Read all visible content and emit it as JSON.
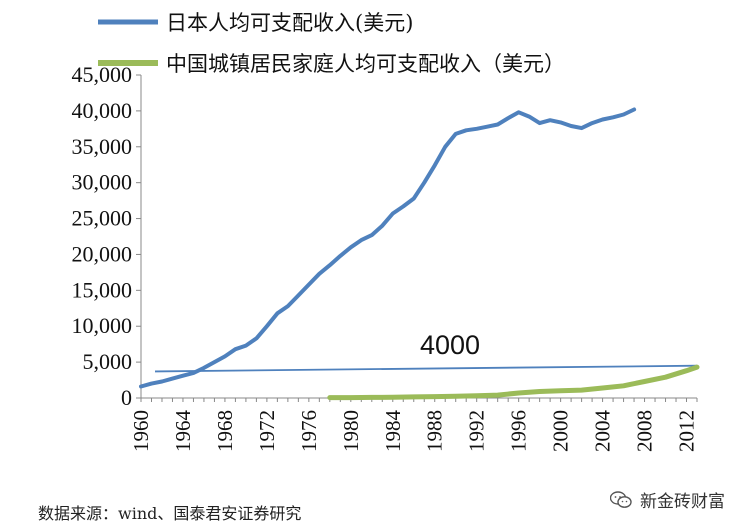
{
  "chart_data": {
    "type": "line",
    "xlim": [
      1960,
      2013
    ],
    "ylim": [
      0,
      45000
    ],
    "y_ticks": [
      0,
      5000,
      10000,
      15000,
      20000,
      25000,
      30000,
      35000,
      40000,
      45000
    ],
    "y_tick_labels": [
      "0",
      "5,000",
      "10,000",
      "15,000",
      "20,000",
      "25,000",
      "30,000",
      "35,000",
      "40,000",
      "45,000"
    ],
    "x_ticks": [
      1960,
      1964,
      1968,
      1972,
      1976,
      1980,
      1984,
      1988,
      1992,
      1996,
      2000,
      2004,
      2008,
      2012
    ],
    "x_tick_labels": [
      "1960",
      "1964",
      "1968",
      "1972",
      "1976",
      "1980",
      "1984",
      "1988",
      "1992",
      "1996",
      "2000",
      "2004",
      "2008",
      "2012"
    ],
    "grid": false,
    "legend_position": "top-left",
    "series": [
      {
        "name": "日本人均可支配收入(美元)",
        "color": "#4F81BD",
        "x": [
          1960,
          1961,
          1962,
          1963,
          1964,
          1965,
          1966,
          1967,
          1968,
          1969,
          1970,
          1971,
          1972,
          1973,
          1974,
          1975,
          1976,
          1977,
          1978,
          1979,
          1980,
          1981,
          1982,
          1983,
          1984,
          1985,
          1986,
          1987,
          1988,
          1989,
          1990,
          1991,
          1992,
          1993,
          1994,
          1995,
          1996,
          1997,
          1998,
          1999,
          2000,
          2001,
          2002,
          2003,
          2004,
          2005,
          2006,
          2007
        ],
        "y": [
          1600,
          2000,
          2300,
          2700,
          3100,
          3500,
          4200,
          5000,
          5800,
          6800,
          7300,
          8300,
          10000,
          11800,
          12800,
          14300,
          15800,
          17300,
          18500,
          19800,
          21000,
          22000,
          22700,
          24000,
          25700,
          26700,
          27800,
          30000,
          32400,
          35000,
          36800,
          37300,
          37500,
          37800,
          38100,
          39000,
          39800,
          39200,
          38300,
          38700,
          38400,
          37900,
          37600,
          38300,
          38800,
          39100,
          39500,
          40200
        ]
      },
      {
        "name": "中国城镇居民家庭人均可支配收入（美元）",
        "color": "#9BBB59",
        "x": [
          1978,
          1980,
          1982,
          1984,
          1986,
          1988,
          1990,
          1992,
          1994,
          1996,
          1998,
          2000,
          2002,
          2004,
          2006,
          2008,
          2010,
          2012,
          2013
        ],
        "y": [
          50,
          60,
          80,
          100,
          150,
          200,
          250,
          300,
          400,
          700,
          900,
          1000,
          1100,
          1400,
          1700,
          2300,
          2900,
          3800,
          4300
        ]
      }
    ],
    "reference_line": {
      "label": "4000",
      "color": "#4F81BD",
      "x": [
        1960,
        2013
      ],
      "y": [
        3700,
        4500
      ]
    }
  },
  "source_text": "数据来源：wind、国泰君安证券研究",
  "watermark_text": "新金砖财富"
}
